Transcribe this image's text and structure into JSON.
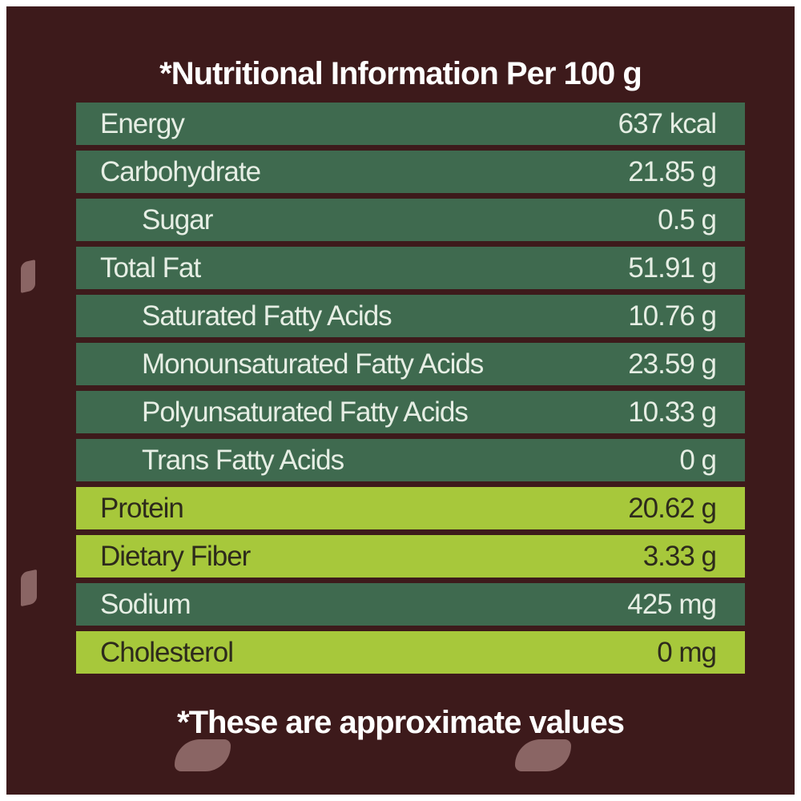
{
  "title": "*Nutritional Information Per 100 g",
  "table": {
    "rows": [
      [
        "Energy",
        "637 kcal"
      ],
      [
        "Carbohydrate",
        "21.85 g"
      ],
      [
        "Sugar",
        "0.5 g"
      ],
      [
        "Total Fat",
        "51.91 g"
      ],
      [
        "Saturated Fatty Acids",
        "10.76 g"
      ],
      [
        "Monounsaturated Fatty Acids",
        "23.59 g"
      ],
      [
        "Polyunsaturated Fatty Acids",
        "10.33 g"
      ],
      [
        "Trans Fatty Acids",
        "0 g"
      ],
      [
        "Protein",
        "20.62 g"
      ],
      [
        "Dietary Fiber",
        "3.33 g"
      ],
      [
        "Sodium",
        "425 mg"
      ],
      [
        "Cholesterol",
        "0 mg"
      ]
    ]
  },
  "footnote": "*These are approximate values"
}
